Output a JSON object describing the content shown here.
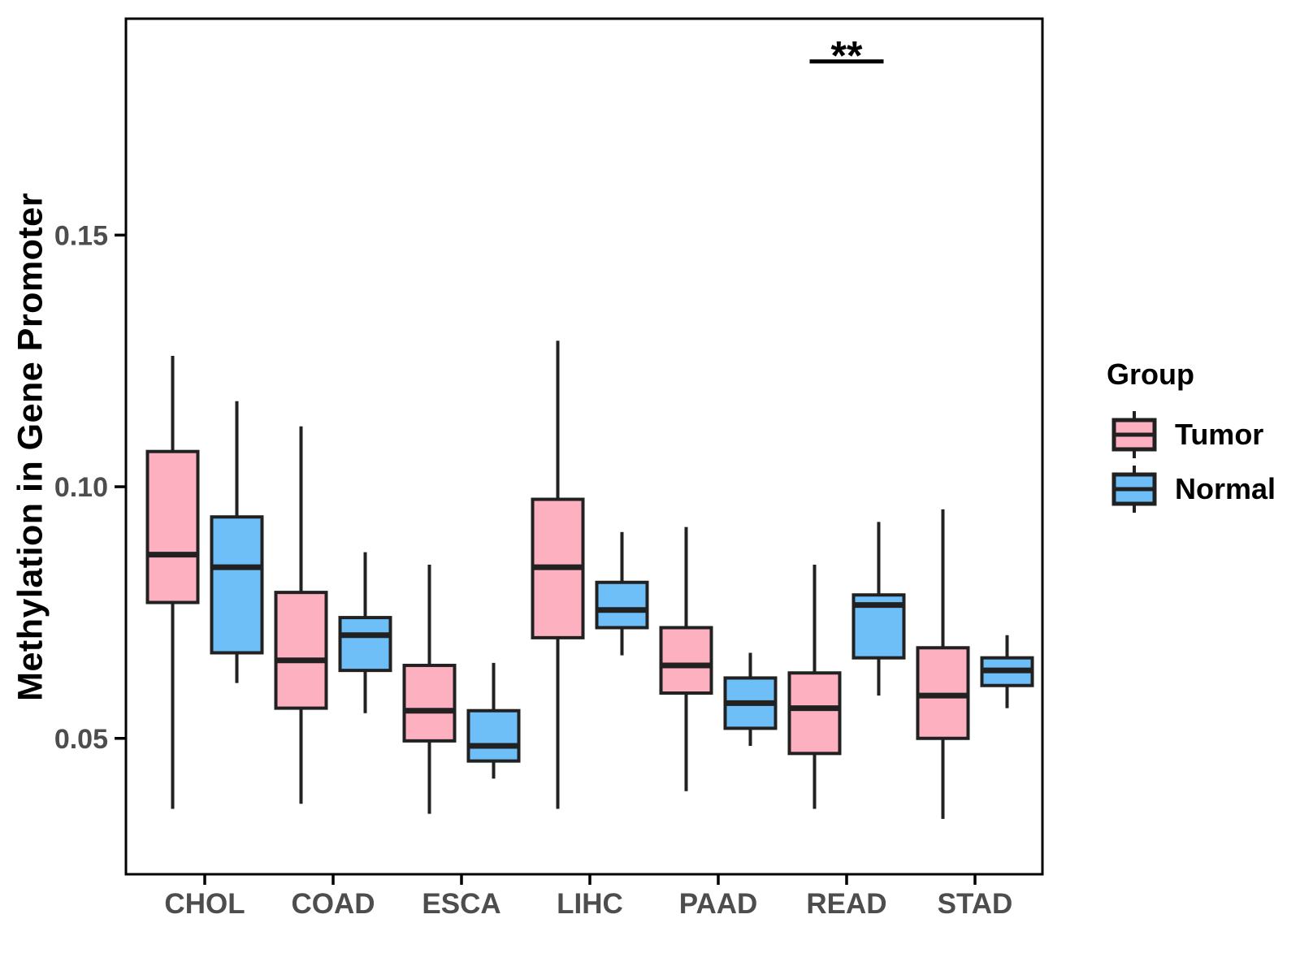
{
  "figure": {
    "background": "#FFFFFF"
  },
  "y_axis": {
    "title": "Methylation in Gene Promoter",
    "tick_labels": [
      "0.05",
      "0.10",
      "0.15"
    ]
  },
  "x_axis": {
    "tick_labels": [
      "CHOL",
      "COAD",
      "ESCA",
      "LIHC",
      "PAAD",
      "READ",
      "STAD"
    ]
  },
  "legend": {
    "title": "Group",
    "items": [
      {
        "label": "Tumor",
        "color": "#FCB0C0"
      },
      {
        "label": "Normal",
        "color": "#6EBEF7"
      }
    ]
  },
  "colors": {
    "tumor_fill": "#FCB0C0",
    "normal_fill": "#6EBEF7",
    "box_stroke": "#212121",
    "axis_stroke": "#000000",
    "tick_text": "#4D4D4D",
    "title_text": "#000000"
  },
  "chart_data": {
    "type": "boxplot",
    "title": "",
    "xlabel": "",
    "ylabel": "Methylation in Gene Promoter",
    "categories": [
      "CHOL",
      "COAD",
      "ESCA",
      "LIHC",
      "PAAD",
      "READ",
      "STAD"
    ],
    "groups": [
      "Tumor",
      "Normal"
    ],
    "group_colors": {
      "Tumor": "#FCB0C0",
      "Normal": "#6EBEF7"
    },
    "ylim": [
      0.023,
      0.193
    ],
    "yticks": [
      0.05,
      0.1,
      0.15
    ],
    "grid": false,
    "legend_position": "right",
    "series": [
      {
        "name": "Tumor",
        "boxes": [
          {
            "category": "CHOL",
            "whisker_low": 0.036,
            "q1": 0.077,
            "median": 0.0865,
            "q3": 0.107,
            "whisker_high": 0.126
          },
          {
            "category": "COAD",
            "whisker_low": 0.037,
            "q1": 0.056,
            "median": 0.0655,
            "q3": 0.079,
            "whisker_high": 0.112
          },
          {
            "category": "ESCA",
            "whisker_low": 0.035,
            "q1": 0.0495,
            "median": 0.0555,
            "q3": 0.0645,
            "whisker_high": 0.0845
          },
          {
            "category": "LIHC",
            "whisker_low": 0.036,
            "q1": 0.07,
            "median": 0.084,
            "q3": 0.0975,
            "whisker_high": 0.129
          },
          {
            "category": "PAAD",
            "whisker_low": 0.0395,
            "q1": 0.059,
            "median": 0.0645,
            "q3": 0.072,
            "whisker_high": 0.092
          },
          {
            "category": "READ",
            "whisker_low": 0.036,
            "q1": 0.047,
            "median": 0.056,
            "q3": 0.063,
            "whisker_high": 0.0845
          },
          {
            "category": "STAD",
            "whisker_low": 0.034,
            "q1": 0.05,
            "median": 0.0585,
            "q3": 0.068,
            "whisker_high": 0.0955
          }
        ]
      },
      {
        "name": "Normal",
        "boxes": [
          {
            "category": "CHOL",
            "whisker_low": 0.061,
            "q1": 0.067,
            "median": 0.084,
            "q3": 0.094,
            "whisker_high": 0.117
          },
          {
            "category": "COAD",
            "whisker_low": 0.055,
            "q1": 0.0635,
            "median": 0.0705,
            "q3": 0.074,
            "whisker_high": 0.087
          },
          {
            "category": "ESCA",
            "whisker_low": 0.042,
            "q1": 0.0455,
            "median": 0.0485,
            "q3": 0.0555,
            "whisker_high": 0.065
          },
          {
            "category": "LIHC",
            "whisker_low": 0.0665,
            "q1": 0.072,
            "median": 0.0755,
            "q3": 0.081,
            "whisker_high": 0.091
          },
          {
            "category": "PAAD",
            "whisker_low": 0.0485,
            "q1": 0.052,
            "median": 0.057,
            "q3": 0.062,
            "whisker_high": 0.067
          },
          {
            "category": "READ",
            "whisker_low": 0.0585,
            "q1": 0.066,
            "median": 0.0765,
            "q3": 0.0785,
            "whisker_high": 0.093
          },
          {
            "category": "STAD",
            "whisker_low": 0.056,
            "q1": 0.0605,
            "median": 0.0635,
            "q3": 0.066,
            "whisker_high": 0.0705
          }
        ]
      }
    ],
    "annotation": {
      "text": "**",
      "category": "READ",
      "bar_y": 0.1845
    }
  }
}
